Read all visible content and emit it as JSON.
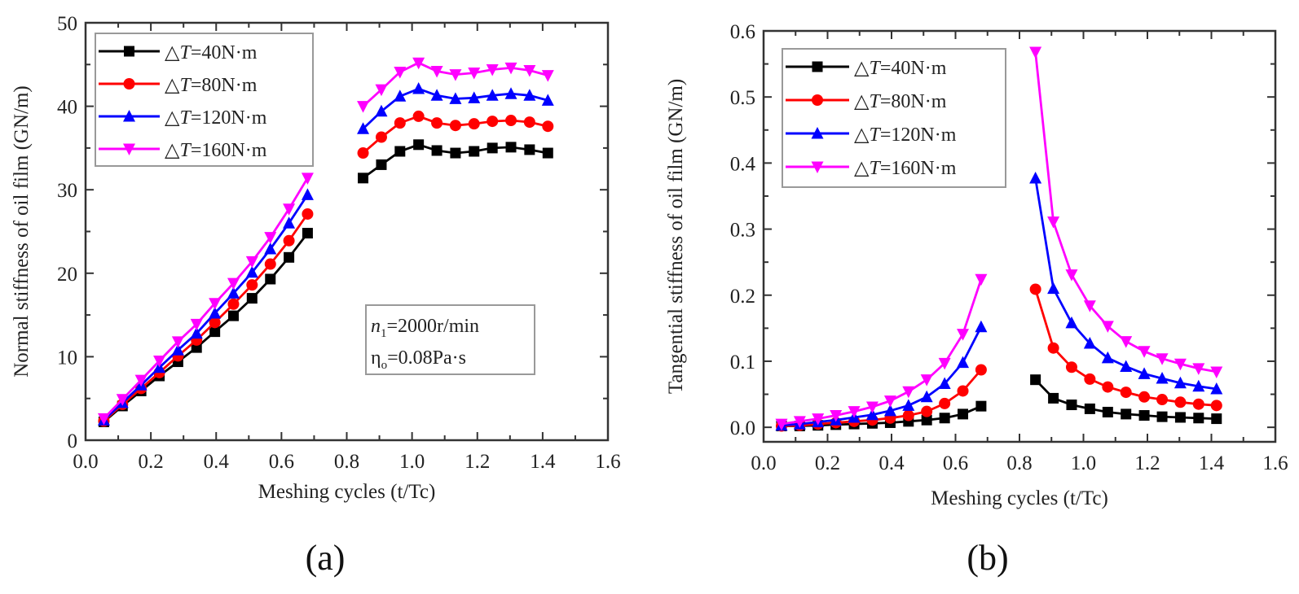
{
  "figure": {
    "panels": [
      "(a)",
      "(b)"
    ]
  },
  "chart_data": [
    {
      "type": "line",
      "panel": "(a)",
      "title": "",
      "xlabel": "Meshing cycles (t/Tc)",
      "ylabel": "Normal stiffness of oil film (GN/m)",
      "xlim": [
        0.0,
        1.6
      ],
      "ylim": [
        0,
        50
      ],
      "xticks": [
        "0.0",
        "0.2",
        "0.4",
        "0.6",
        "0.8",
        "1.0",
        "1.2",
        "1.4",
        "1.6"
      ],
      "xtick_values": [
        0.0,
        0.2,
        0.4,
        0.6,
        0.8,
        1.0,
        1.2,
        1.4,
        1.6
      ],
      "yticks": [
        "0",
        "10",
        "20",
        "30",
        "40",
        "50"
      ],
      "ytick_values": [
        0,
        10,
        20,
        30,
        40,
        50
      ],
      "legend_position": "top-left",
      "annotation": {
        "line1_var": "n",
        "line1_sub": "1",
        "line1_rest": "=2000r/min",
        "line2_var": "η",
        "line2_sub": "o",
        "line2_rest": "=0.08Pa·s"
      },
      "x": [
        0.056,
        0.113,
        0.17,
        0.226,
        0.283,
        0.34,
        0.396,
        0.453,
        0.51,
        0.566,
        0.623,
        0.68,
        0.85,
        0.906,
        0.963,
        1.02,
        1.076,
        1.133,
        1.19,
        1.246,
        1.303,
        1.36,
        1.416
      ],
      "segment_break_after_index": 11,
      "series": [
        {
          "name": "△T=40N·m",
          "prefix": "△",
          "var": "T",
          "suffix": "=40N·m",
          "color": "#000000",
          "marker": "square",
          "values": [
            2.2,
            4.1,
            5.9,
            7.7,
            9.4,
            11.1,
            13.0,
            14.9,
            17.0,
            19.3,
            21.9,
            24.8,
            31.4,
            33.0,
            34.6,
            35.4,
            34.7,
            34.4,
            34.6,
            35.0,
            35.1,
            34.8,
            34.4
          ]
        },
        {
          "name": "△T=80N·m",
          "prefix": "△",
          "var": "T",
          "suffix": "=80N·m",
          "color": "#ff0000",
          "marker": "circle",
          "values": [
            2.3,
            4.3,
            6.2,
            8.1,
            10.1,
            12.0,
            14.1,
            16.3,
            18.6,
            21.1,
            23.9,
            27.1,
            34.4,
            36.3,
            38.0,
            38.8,
            38.0,
            37.7,
            37.9,
            38.2,
            38.3,
            38.1,
            37.6
          ]
        },
        {
          "name": "△T=120N·m",
          "prefix": "△",
          "var": "T",
          "suffix": "=120N·m",
          "color": "#0000ff",
          "marker": "triangle-up",
          "values": [
            2.4,
            4.5,
            6.6,
            8.7,
            10.8,
            12.8,
            15.2,
            17.6,
            20.1,
            22.9,
            26.0,
            29.4,
            37.3,
            39.4,
            41.2,
            42.1,
            41.3,
            40.9,
            41.0,
            41.3,
            41.5,
            41.3,
            40.7
          ]
        },
        {
          "name": "△T=160N·m",
          "prefix": "△",
          "var": "T",
          "suffix": "=160N·m",
          "color": "#ff00ff",
          "marker": "triangle-down",
          "values": [
            2.6,
            4.9,
            7.2,
            9.5,
            11.8,
            13.9,
            16.4,
            18.8,
            21.4,
            24.3,
            27.7,
            31.4,
            40.0,
            42.0,
            44.1,
            45.2,
            44.2,
            43.8,
            44.0,
            44.4,
            44.6,
            44.3,
            43.7
          ]
        }
      ]
    },
    {
      "type": "line",
      "panel": "(b)",
      "title": "",
      "xlabel": "Meshing cycles (t/Tc)",
      "ylabel": "Tangential stiffness of oil film (GN/m)",
      "xlim": [
        0.0,
        1.6
      ],
      "ylim": [
        -0.022,
        0.6
      ],
      "xticks": [
        "0.0",
        "0.2",
        "0.4",
        "0.6",
        "0.8",
        "1.0",
        "1.2",
        "1.4",
        "1.6"
      ],
      "xtick_values": [
        0.0,
        0.2,
        0.4,
        0.6,
        0.8,
        1.0,
        1.2,
        1.4,
        1.6
      ],
      "yticks": [
        "0.0",
        "0.1",
        "0.2",
        "0.3",
        "0.4",
        "0.5",
        "0.6"
      ],
      "ytick_values": [
        0.0,
        0.1,
        0.2,
        0.3,
        0.4,
        0.5,
        0.6
      ],
      "legend_position": "top-left",
      "x": [
        0.056,
        0.113,
        0.17,
        0.226,
        0.283,
        0.34,
        0.396,
        0.453,
        0.51,
        0.566,
        0.623,
        0.68,
        0.85,
        0.906,
        0.963,
        1.02,
        1.076,
        1.133,
        1.19,
        1.246,
        1.303,
        1.36,
        1.416
      ],
      "segment_break_after_index": 11,
      "series": [
        {
          "name": "△T=40N·m",
          "prefix": "△",
          "var": "T",
          "suffix": "=40N·m",
          "color": "#000000",
          "marker": "square",
          "values": [
            0.002,
            0.002,
            0.003,
            0.004,
            0.005,
            0.006,
            0.007,
            0.009,
            0.011,
            0.014,
            0.02,
            0.032,
            0.072,
            0.044,
            0.034,
            0.028,
            0.023,
            0.02,
            0.018,
            0.016,
            0.015,
            0.014,
            0.013
          ]
        },
        {
          "name": "△T=80N·m",
          "prefix": "△",
          "var": "T",
          "suffix": "=80N·m",
          "color": "#ff0000",
          "marker": "circle",
          "values": [
            0.002,
            0.003,
            0.005,
            0.007,
            0.009,
            0.011,
            0.014,
            0.018,
            0.024,
            0.036,
            0.055,
            0.087,
            0.209,
            0.12,
            0.091,
            0.073,
            0.061,
            0.053,
            0.046,
            0.042,
            0.038,
            0.035,
            0.033
          ]
        },
        {
          "name": "△T=120N·m",
          "prefix": "△",
          "var": "T",
          "suffix": "=120N·m",
          "color": "#0000ff",
          "marker": "triangle-up",
          "values": [
            0.003,
            0.005,
            0.008,
            0.011,
            0.015,
            0.019,
            0.025,
            0.033,
            0.046,
            0.066,
            0.098,
            0.152,
            0.377,
            0.21,
            0.158,
            0.127,
            0.105,
            0.092,
            0.081,
            0.074,
            0.067,
            0.062,
            0.058
          ]
        },
        {
          "name": "△T=160N·m",
          "prefix": "△",
          "var": "T",
          "suffix": "=160N·m",
          "color": "#ff00ff",
          "marker": "triangle-down",
          "values": [
            0.005,
            0.009,
            0.013,
            0.018,
            0.024,
            0.031,
            0.04,
            0.054,
            0.072,
            0.097,
            0.141,
            0.224,
            0.568,
            0.311,
            0.231,
            0.184,
            0.153,
            0.13,
            0.115,
            0.104,
            0.096,
            0.089,
            0.084
          ]
        }
      ]
    }
  ]
}
